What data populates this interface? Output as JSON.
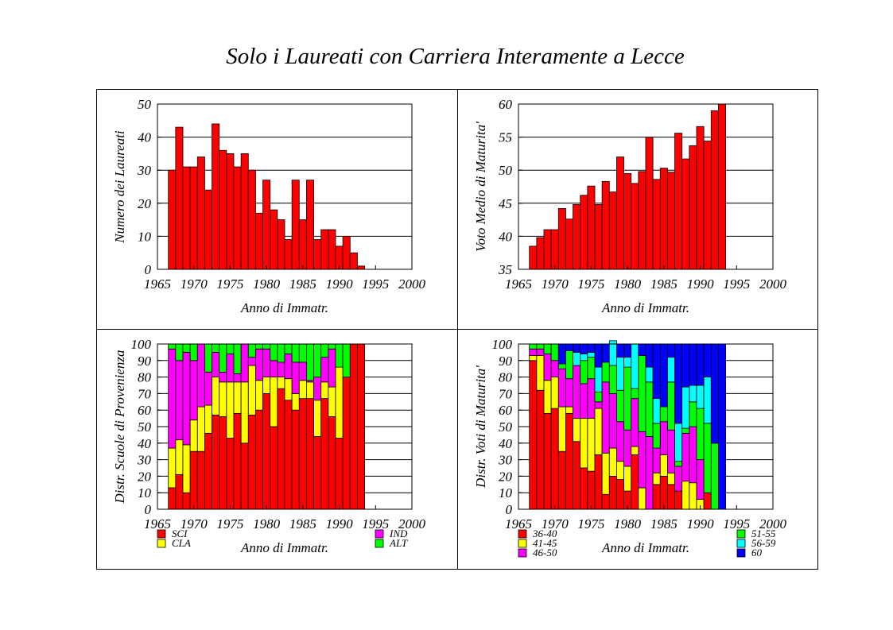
{
  "title": "Solo i Laureati con Carriera Interamente a Lecce",
  "colors": {
    "red": "#ff0000",
    "yellow": "#ffff00",
    "magenta": "#ff00ff",
    "green": "#00ff00",
    "cyan": "#00ffff",
    "blue": "#0000ff",
    "grid": "#000000"
  },
  "chart_data": [
    {
      "type": "bar",
      "title": "",
      "xlabel": "Anno di Immatr.",
      "ylabel": "Numero dei Laureati",
      "xlim": [
        1965,
        2000
      ],
      "ylim": [
        0,
        50
      ],
      "x_ticks": [
        1965,
        1970,
        1975,
        1980,
        1985,
        1990,
        1995,
        2000
      ],
      "y_ticks": [
        0,
        10,
        20,
        30,
        40,
        50
      ],
      "grid": true,
      "x": [
        1967,
        1968,
        1969,
        1970,
        1971,
        1972,
        1973,
        1974,
        1975,
        1976,
        1977,
        1978,
        1979,
        1980,
        1981,
        1982,
        1983,
        1984,
        1985,
        1986,
        1987,
        1988,
        1989,
        1990,
        1991,
        1992,
        1993
      ],
      "series": [
        {
          "color": "red",
          "values": [
            30,
            43,
            31,
            31,
            34,
            24,
            44,
            36,
            35,
            31,
            35,
            30,
            17,
            27,
            18,
            15,
            9,
            27,
            15,
            27,
            9,
            12,
            12,
            7,
            10,
            5,
            1
          ]
        }
      ]
    },
    {
      "type": "bar",
      "title": "",
      "xlabel": "Anno di Immatr.",
      "ylabel": "Voto Medio di Maturita'",
      "xlim": [
        1965,
        2000
      ],
      "ylim": [
        35,
        60
      ],
      "x_ticks": [
        1965,
        1970,
        1975,
        1980,
        1985,
        1990,
        1995,
        2000
      ],
      "y_ticks": [
        35,
        40,
        45,
        50,
        55,
        60
      ],
      "grid": true,
      "x": [
        1967,
        1968,
        1969,
        1970,
        1971,
        1972,
        1973,
        1974,
        1975,
        1976,
        1977,
        1978,
        1979,
        1980,
        1981,
        1982,
        1983,
        1984,
        1985,
        1986,
        1987,
        1988,
        1989,
        1990,
        1991,
        1992,
        1993
      ],
      "series": [
        {
          "color": "red",
          "values": [
            38.5,
            39.8,
            41,
            41,
            44.2,
            42.6,
            44.8,
            46.2,
            47.6,
            44.8,
            48.3,
            46.7,
            52,
            49.5,
            48,
            49.8,
            55,
            48.6,
            50.3,
            49.7,
            55.6,
            51.7,
            53.7,
            56.6,
            54.4,
            59,
            60
          ]
        }
      ]
    },
    {
      "type": "bar",
      "stacked": true,
      "title": "",
      "xlabel": "Anno di Immatr.",
      "ylabel": "Distr. Scuole di Provenienza",
      "xlim": [
        1965,
        2000
      ],
      "ylim": [
        0,
        100
      ],
      "x_ticks": [
        1965,
        1970,
        1975,
        1980,
        1985,
        1990,
        1995,
        2000
      ],
      "y_ticks": [
        0,
        10,
        20,
        30,
        40,
        50,
        60,
        70,
        80,
        90,
        100
      ],
      "grid": true,
      "legend": "bottom",
      "x": [
        1967,
        1968,
        1969,
        1970,
        1971,
        1972,
        1973,
        1974,
        1975,
        1976,
        1977,
        1978,
        1979,
        1980,
        1981,
        1982,
        1983,
        1984,
        1985,
        1986,
        1987,
        1988,
        1989,
        1990,
        1991,
        1992,
        1993
      ],
      "series": [
        {
          "name": "SCI",
          "color": "red",
          "values": [
            13,
            21,
            10,
            35,
            35,
            46,
            57,
            56,
            43,
            58,
            40,
            57,
            60,
            70,
            50,
            73,
            66,
            60,
            67,
            67,
            44,
            67,
            56,
            43,
            80,
            100,
            100
          ]
        },
        {
          "name": "CLA",
          "color": "yellow",
          "values": [
            24,
            21,
            29,
            19,
            27,
            17,
            23,
            21,
            34,
            19,
            37,
            30,
            18,
            10,
            30,
            7,
            13,
            10,
            11,
            10,
            22,
            10,
            18,
            43,
            0,
            0,
            0
          ]
        },
        {
          "name": "IND",
          "color": "magenta",
          "values": [
            60,
            48,
            56,
            36,
            38,
            20,
            15,
            6,
            17,
            5,
            23,
            5,
            19,
            17,
            10,
            9,
            15,
            19,
            11,
            1,
            14,
            15,
            23,
            0,
            0,
            0,
            0
          ]
        },
        {
          "name": "ALT",
          "color": "green",
          "values": [
            3,
            10,
            5,
            10,
            0,
            17,
            5,
            17,
            6,
            18,
            0,
            8,
            3,
            3,
            10,
            11,
            6,
            11,
            11,
            22,
            20,
            8,
            3,
            14,
            20,
            0,
            0
          ]
        }
      ]
    },
    {
      "type": "bar",
      "stacked": true,
      "title": "",
      "xlabel": "Anno di Immatr.",
      "ylabel": "Distr. Voti di Maturita'",
      "xlim": [
        1965,
        2000
      ],
      "ylim": [
        0,
        100
      ],
      "x_ticks": [
        1965,
        1970,
        1975,
        1980,
        1985,
        1990,
        1995,
        2000
      ],
      "y_ticks": [
        0,
        10,
        20,
        30,
        40,
        50,
        60,
        70,
        80,
        90,
        100
      ],
      "grid": true,
      "legend": "bottom",
      "x": [
        1967,
        1968,
        1969,
        1970,
        1971,
        1972,
        1973,
        1974,
        1975,
        1976,
        1977,
        1978,
        1979,
        1980,
        1981,
        1982,
        1983,
        1984,
        1985,
        1986,
        1987,
        1988,
        1989,
        1990,
        1991,
        1992,
        1993
      ],
      "series": [
        {
          "name": "36-40",
          "color": "red",
          "values": [
            90,
            72,
            58,
            61,
            35,
            58,
            41,
            25,
            23,
            33,
            9,
            20,
            18,
            11,
            33,
            0,
            0,
            15,
            20,
            15,
            11,
            0,
            0,
            0,
            10,
            0,
            0
          ]
        },
        {
          "name": "41-45",
          "color": "yellow",
          "values": [
            3,
            21,
            20,
            19,
            27,
            4,
            14,
            30,
            32,
            28,
            25,
            17,
            11,
            15,
            5,
            13,
            0,
            7,
            13,
            7,
            0,
            17,
            16,
            6,
            0,
            0,
            0
          ]
        },
        {
          "name": "46-50",
          "color": "magenta",
          "values": [
            4,
            4,
            16,
            10,
            23,
            17,
            32,
            21,
            24,
            4,
            43,
            33,
            24,
            22,
            29,
            34,
            44,
            15,
            20,
            26,
            15,
            29,
            34,
            24,
            0,
            0,
            0
          ]
        },
        {
          "name": "51-55",
          "color": "green",
          "values": [
            3,
            3,
            6,
            10,
            3,
            17,
            0,
            14,
            13,
            6,
            12,
            17,
            19,
            38,
            6,
            46,
            33,
            15,
            9,
            29,
            3,
            3,
            15,
            31,
            42,
            40,
            0
          ]
        },
        {
          "name": "56-59",
          "color": "cyan",
          "values": [
            0,
            0,
            0,
            0,
            0,
            0,
            8,
            4,
            3,
            15,
            0,
            15,
            20,
            6,
            27,
            0,
            9,
            15,
            0,
            15,
            23,
            25,
            10,
            14,
            28,
            0,
            0
          ]
        },
        {
          "name": "60",
          "color": "blue",
          "values": [
            0,
            0,
            0,
            0,
            12,
            4,
            5,
            6,
            5,
            14,
            11,
            0,
            8,
            8,
            0,
            7,
            14,
            33,
            38,
            8,
            48,
            26,
            25,
            25,
            20,
            60,
            100
          ]
        }
      ]
    }
  ]
}
